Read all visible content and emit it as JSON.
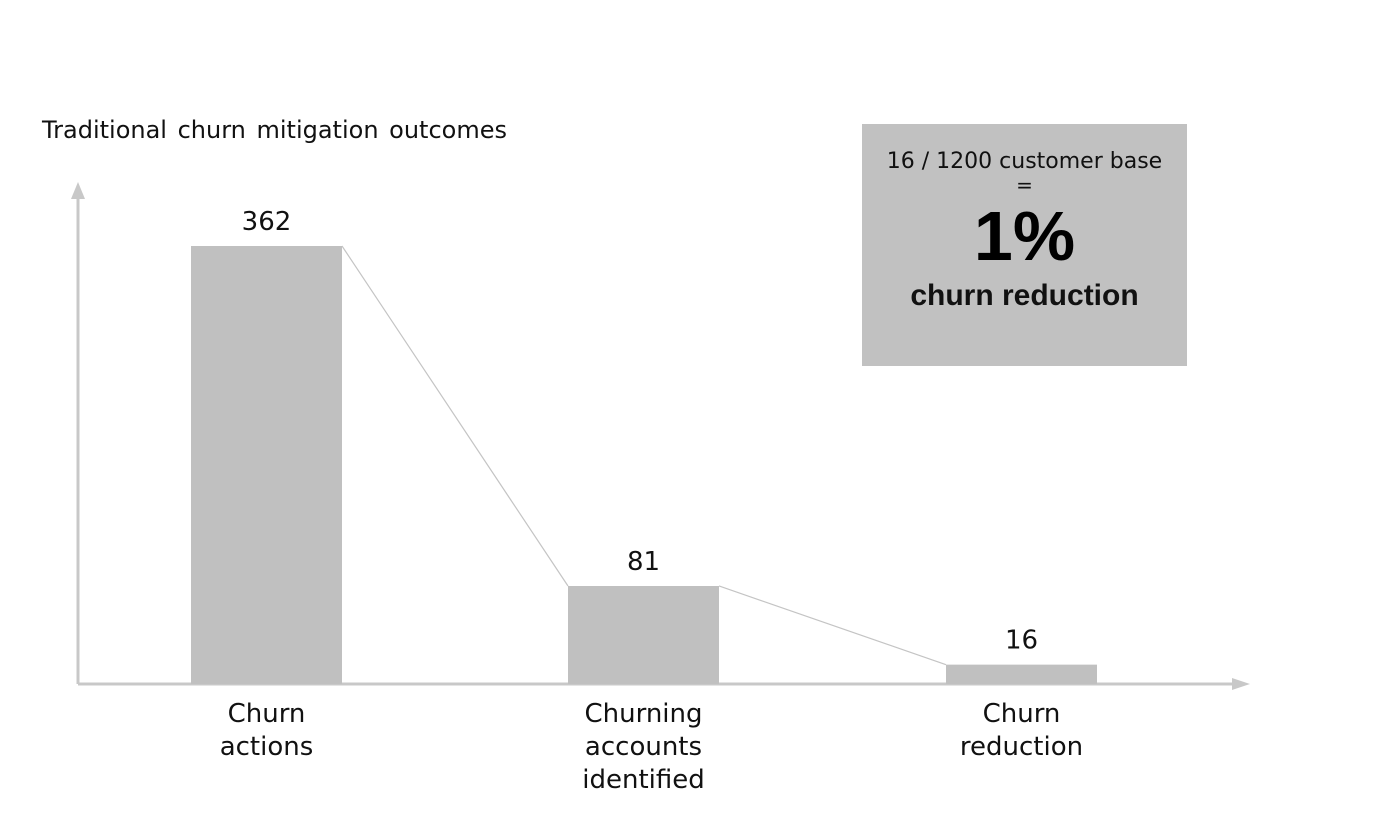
{
  "chart_data": {
    "type": "bar",
    "title": "Traditional churn mitigation outcomes",
    "categories": [
      [
        "Churn",
        "actions"
      ],
      [
        "Churning",
        "accounts",
        "identified"
      ],
      [
        "Churn",
        "reduction"
      ]
    ],
    "values": [
      362,
      81,
      16
    ],
    "value_labels": [
      "362",
      "81",
      "16"
    ],
    "ylim": [
      0,
      400
    ],
    "grid": false,
    "connector_lines": true,
    "bar_color": "#c0c0c0",
    "axis_color": "#c8c8c8"
  },
  "callout": {
    "formula": "16 / 1200 customer base",
    "equals": "=",
    "big": "1%",
    "sub": "churn reduction",
    "background": "#c1c1c1"
  }
}
